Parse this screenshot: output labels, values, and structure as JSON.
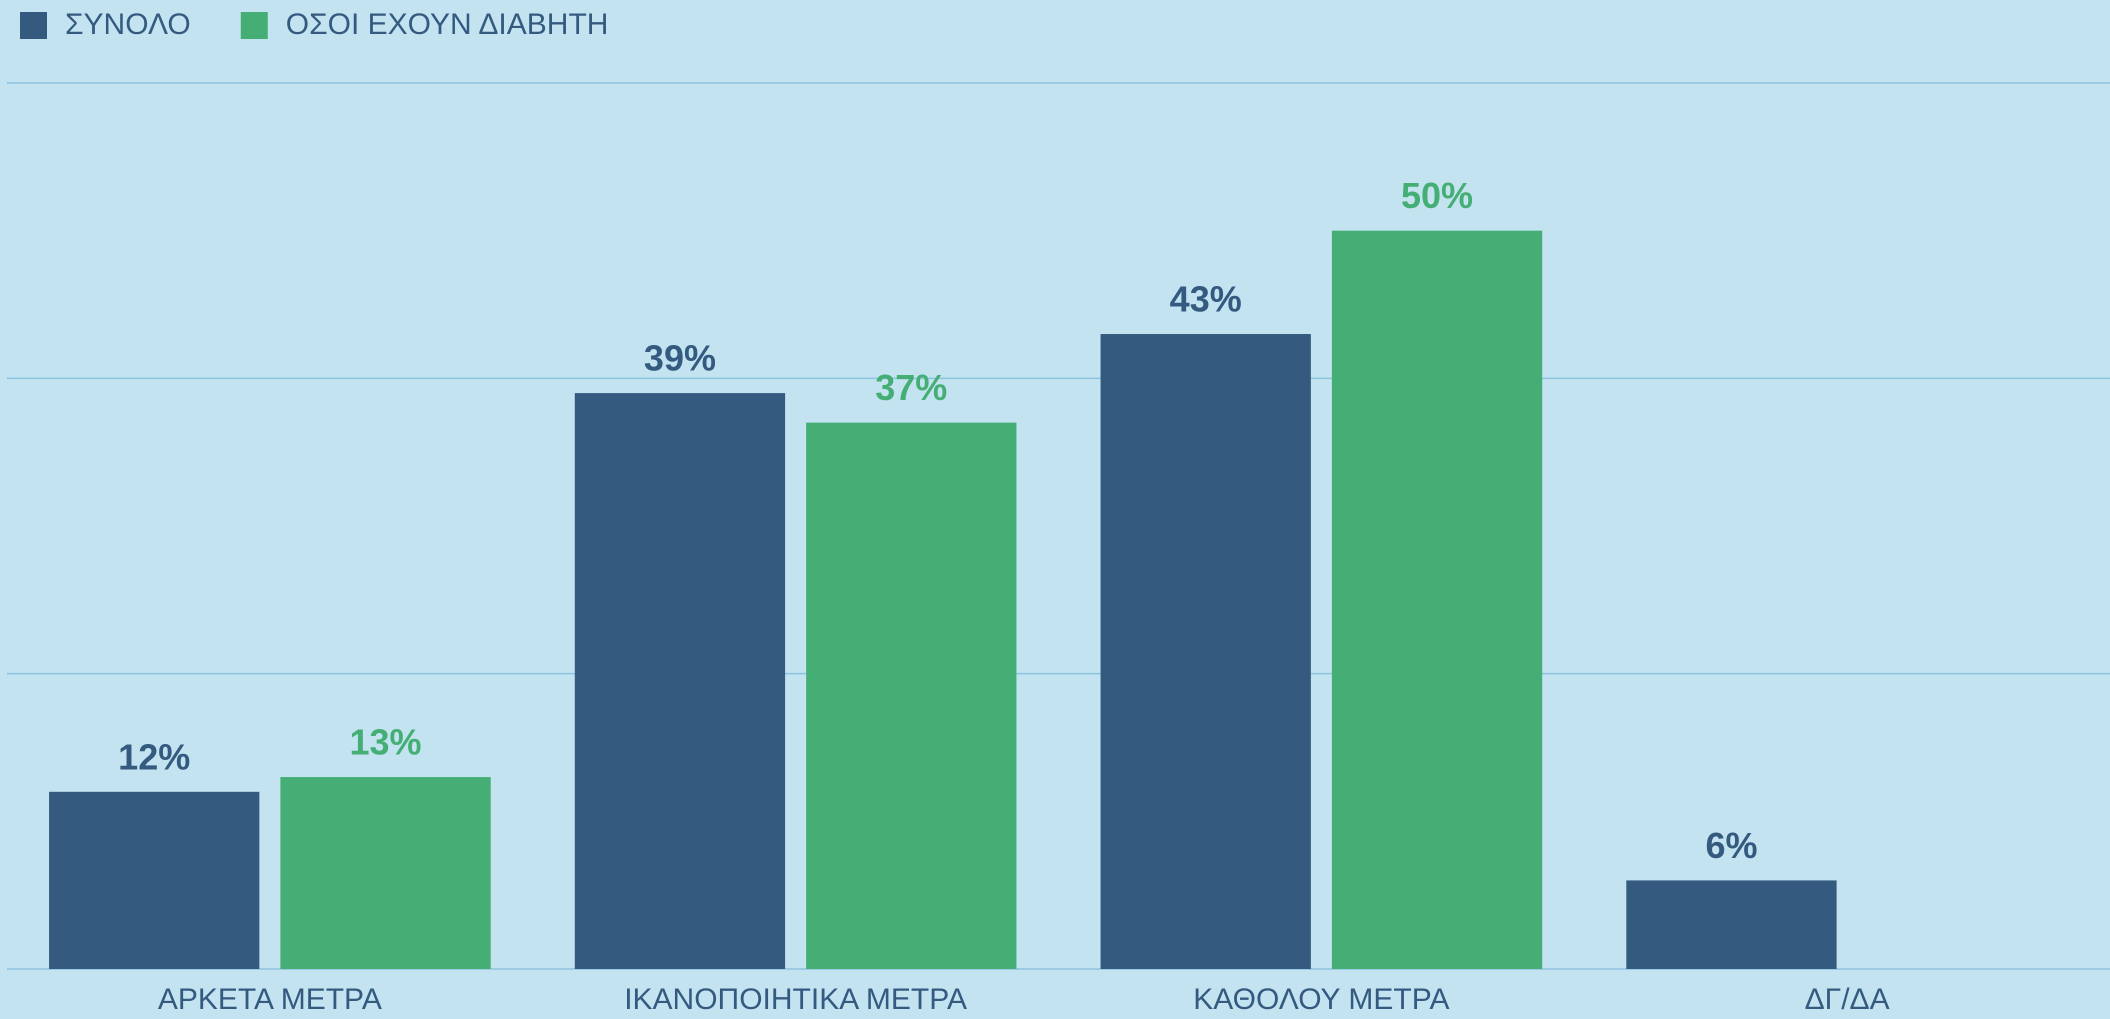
{
  "chart_data": {
    "type": "bar",
    "categories": [
      "ΑΡΚΕΤΑ ΜΕΤΡΑ",
      "ΙΚΑΝΟΠΟΙΗΤΙΚΑ ΜΕΤΡΑ",
      "ΚΑΘΟΛΟΥ ΜΕΤΡΑ",
      "ΔΓ/ΔΑ"
    ],
    "series": [
      {
        "name": "ΣΥΝΟΛΟ",
        "color": "#345a80",
        "values": [
          12,
          39,
          43,
          6
        ],
        "value_labels": [
          "12%",
          "39%",
          "43%",
          "6%"
        ]
      },
      {
        "name": "ΟΣΟΙ ΕΧΟΥΝ ΔΙΑΒΗΤΗ",
        "color": "#45ae75",
        "values": [
          13,
          37,
          50,
          null
        ],
        "value_labels": [
          "13%",
          "37%",
          "50%",
          null
        ]
      }
    ],
    "ylim": [
      0,
      60
    ],
    "yticks": [
      0,
      20,
      40,
      60
    ],
    "grid": true,
    "legend": "top-left"
  }
}
